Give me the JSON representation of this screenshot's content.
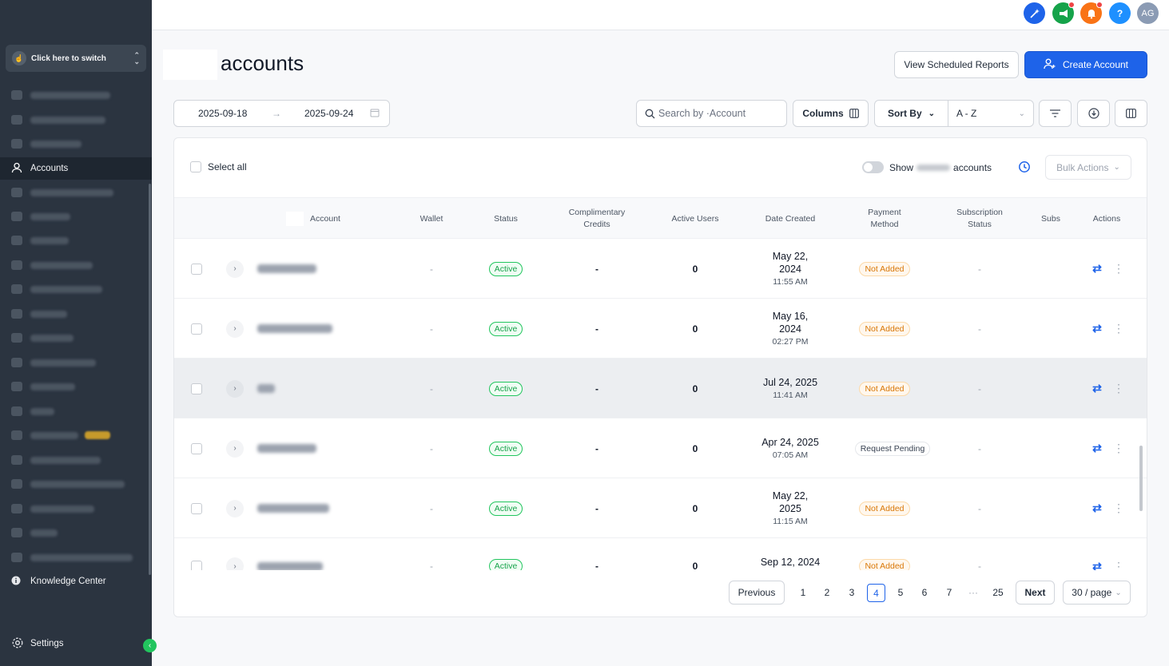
{
  "sidebar": {
    "switcher_label": "Click here to switch",
    "active_item": "Accounts",
    "bottom_item": "Knowledge Center",
    "settings": "Settings"
  },
  "topbar": {
    "avatar_initials": "AG",
    "help": "?"
  },
  "header": {
    "title": "accounts",
    "view_reports": "View Scheduled Reports",
    "create_account": "Create Account"
  },
  "filters": {
    "date_from": "2025-09-18",
    "date_to": "2025-09-24",
    "search_placeholder": "Search by ·Account",
    "columns": "Columns",
    "sort_by": "Sort By",
    "sort_value": "A - Z"
  },
  "toolbar": {
    "select_all": "Select all",
    "show_label": "Show",
    "show_suffix": "accounts",
    "bulk_actions": "Bulk Actions"
  },
  "table": {
    "headers": {
      "account": "Account",
      "wallet": "Wallet",
      "status": "Status",
      "credits": "Complimentary Credits",
      "users": "Active Users",
      "date": "Date Created",
      "payment": "Payment Method",
      "subscription": "Subscription Status",
      "subs": "Subs",
      "actions": "Actions"
    },
    "rows": [
      {
        "wallet": "-",
        "status": "Active",
        "credits": "-",
        "users": "0",
        "date": "May 22, 2024",
        "time": "11:55 AM",
        "payment": "Not Added",
        "sub": "-"
      },
      {
        "wallet": "-",
        "status": "Active",
        "credits": "-",
        "users": "0",
        "date": "May 16, 2024",
        "time": "02:27 PM",
        "payment": "Not Added",
        "sub": "-"
      },
      {
        "wallet": "-",
        "status": "Active",
        "credits": "-",
        "users": "0",
        "date": "Jul 24, 2025",
        "time": "11:41 AM",
        "payment": "Not Added",
        "sub": "-"
      },
      {
        "wallet": "-",
        "status": "Active",
        "credits": "-",
        "users": "0",
        "date": "Apr 24, 2025",
        "time": "07:05 AM",
        "payment": "Request Pending",
        "sub": "-"
      },
      {
        "wallet": "-",
        "status": "Active",
        "credits": "-",
        "users": "0",
        "date": "May 22, 2025",
        "time": "11:15 AM",
        "payment": "Not Added",
        "sub": "-"
      },
      {
        "wallet": "-",
        "status": "Active",
        "credits": "-",
        "users": "0",
        "date": "Sep 12, 2024",
        "time": "",
        "payment": "Not Added",
        "sub": "-"
      }
    ]
  },
  "pagination": {
    "previous": "Previous",
    "next": "Next",
    "pages": [
      "1",
      "2",
      "3",
      "4",
      "5",
      "6",
      "7",
      "···",
      "25"
    ],
    "current": "4",
    "page_size": "30 / page"
  },
  "colors": {
    "primary": "#1e63e9",
    "sidebar_bg": "#2b3440",
    "active_green": "#16a34a",
    "not_added_orange": "#d97706"
  }
}
